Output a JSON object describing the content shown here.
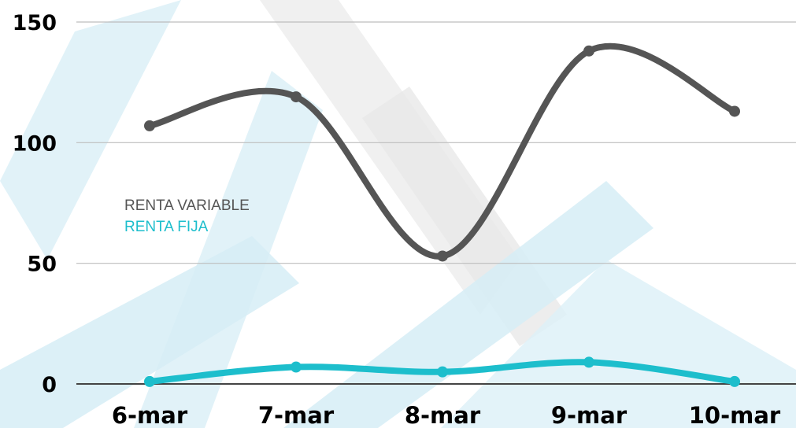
{
  "colors": {
    "renta_variable": "#555555",
    "renta_fija": "#1dbecc",
    "grid": "#bdbdbd",
    "watermark_light": "#e6e6e6",
    "watermark_blue": "#d8eef6"
  },
  "chart_data": {
    "type": "line",
    "categories": [
      "6-mar",
      "7-mar",
      "8-mar",
      "9-mar",
      "10-mar"
    ],
    "series": [
      {
        "name": "RENTA VARIABLE",
        "values": [
          107,
          119,
          53,
          138,
          113
        ]
      },
      {
        "name": "RENTA FIJA",
        "values": [
          1,
          7,
          5,
          9,
          1
        ]
      }
    ],
    "ylim": [
      0,
      150
    ],
    "yticks": [
      "0",
      "50",
      "100",
      "150"
    ],
    "smooth": true,
    "grid": true,
    "legend_position": "left-middle"
  }
}
